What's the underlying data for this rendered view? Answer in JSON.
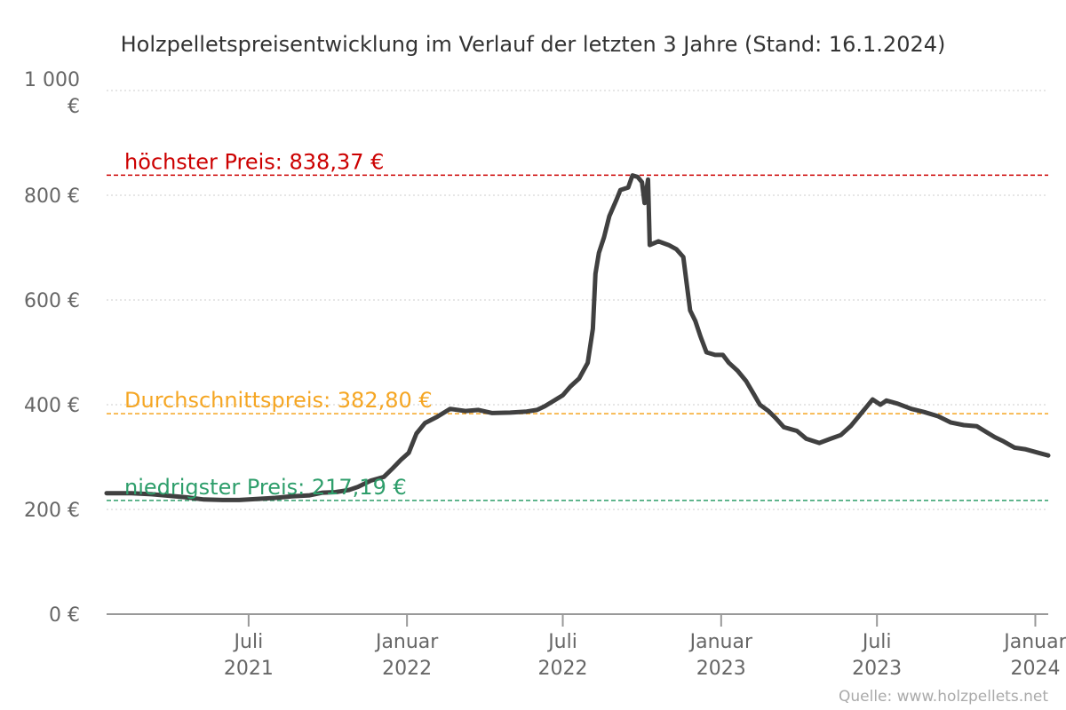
{
  "chart_data": {
    "type": "line",
    "title": "Holzpelletspreisentwicklung im Verlauf der letzten 3 Jahre (Stand: 16.1.2024)",
    "source": "Quelle: www.holzpellets.net",
    "ylim": [
      0,
      1000
    ],
    "xlim": [
      "2021-01-17",
      "2024-01-16"
    ],
    "grid": true,
    "y_ticks": [
      {
        "value": 0,
        "label": "0 €"
      },
      {
        "value": 200,
        "label": "200 €"
      },
      {
        "value": 400,
        "label": "400 €"
      },
      {
        "value": 600,
        "label": "600 €"
      },
      {
        "value": 800,
        "label": "800 €"
      },
      {
        "value": 1000,
        "label": "1 000",
        "label2": "€"
      }
    ],
    "x_ticks": [
      {
        "date": "2021-07-01",
        "line1": "Juli",
        "line2": "2021"
      },
      {
        "date": "2022-01-01",
        "line1": "Januar",
        "line2": "2022"
      },
      {
        "date": "2022-07-01",
        "line1": "Juli",
        "line2": "2022"
      },
      {
        "date": "2023-01-01",
        "line1": "Januar",
        "line2": "2023"
      },
      {
        "date": "2023-07-01",
        "line1": "Juli",
        "line2": "2023"
      },
      {
        "date": "2024-01-01",
        "line1": "Januar",
        "line2": "2024"
      }
    ],
    "reference_lines": [
      {
        "value": 838.37,
        "label": "höchster Preis: 838,37 €",
        "color": "#cc0000"
      },
      {
        "value": 382.8,
        "label": "Durchschnittspreis: 382,80 €",
        "color": "#f5a623"
      },
      {
        "value": 217.19,
        "label": "niedrigster Preis: 217,19 €",
        "color": "#2e9e6b"
      }
    ],
    "series": [
      {
        "color": "#404040",
        "points": [
          [
            "2021-01-17",
            231
          ],
          [
            "2021-02-15",
            231
          ],
          [
            "2021-03-10",
            229
          ],
          [
            "2021-04-01",
            226
          ],
          [
            "2021-04-20",
            223
          ],
          [
            "2021-05-10",
            219
          ],
          [
            "2021-06-01",
            218
          ],
          [
            "2021-06-20",
            218
          ],
          [
            "2021-07-10",
            220
          ],
          [
            "2021-08-01",
            222
          ],
          [
            "2021-08-20",
            225
          ],
          [
            "2021-09-10",
            227
          ],
          [
            "2021-09-25",
            232
          ],
          [
            "2021-10-10",
            233
          ],
          [
            "2021-10-25",
            237
          ],
          [
            "2021-11-05",
            243
          ],
          [
            "2021-11-20",
            255
          ],
          [
            "2021-12-05",
            262
          ],
          [
            "2021-12-15",
            278
          ],
          [
            "2021-12-25",
            295
          ],
          [
            "2022-01-03",
            308
          ],
          [
            "2022-01-12",
            345
          ],
          [
            "2022-01-22",
            365
          ],
          [
            "2022-02-05",
            377
          ],
          [
            "2022-02-20",
            392
          ],
          [
            "2022-03-10",
            388
          ],
          [
            "2022-03-25",
            390
          ],
          [
            "2022-04-10",
            384
          ],
          [
            "2022-05-01",
            385
          ],
          [
            "2022-05-20",
            387
          ],
          [
            "2022-06-01",
            390
          ],
          [
            "2022-06-10",
            397
          ],
          [
            "2022-06-20",
            407
          ],
          [
            "2022-07-01",
            418
          ],
          [
            "2022-07-10",
            435
          ],
          [
            "2022-07-20",
            450
          ],
          [
            "2022-07-30",
            480
          ],
          [
            "2022-08-05",
            545
          ],
          [
            "2022-08-08",
            650
          ],
          [
            "2022-08-12",
            690
          ],
          [
            "2022-08-18",
            720
          ],
          [
            "2022-08-24",
            760
          ],
          [
            "2022-09-01",
            790
          ],
          [
            "2022-09-06",
            810
          ],
          [
            "2022-09-15",
            815
          ],
          [
            "2022-09-20",
            838
          ],
          [
            "2022-09-26",
            835
          ],
          [
            "2022-10-01",
            825
          ],
          [
            "2022-10-04",
            785
          ],
          [
            "2022-10-08",
            830
          ],
          [
            "2022-10-10",
            705
          ],
          [
            "2022-10-20",
            712
          ],
          [
            "2022-11-01",
            705
          ],
          [
            "2022-11-10",
            697
          ],
          [
            "2022-11-18",
            682
          ],
          [
            "2022-11-22",
            630
          ],
          [
            "2022-11-26",
            580
          ],
          [
            "2022-12-02",
            560
          ],
          [
            "2022-12-08",
            530
          ],
          [
            "2022-12-15",
            500
          ],
          [
            "2022-12-25",
            495
          ],
          [
            "2023-01-03",
            495
          ],
          [
            "2023-01-10",
            480
          ],
          [
            "2023-01-20",
            465
          ],
          [
            "2023-01-30",
            445
          ],
          [
            "2023-02-08",
            420
          ],
          [
            "2023-02-15",
            400
          ],
          [
            "2023-02-25",
            388
          ],
          [
            "2023-03-05",
            375
          ],
          [
            "2023-03-15",
            357
          ],
          [
            "2023-03-30",
            350
          ],
          [
            "2023-04-10",
            335
          ],
          [
            "2023-04-25",
            327
          ],
          [
            "2023-05-08",
            335
          ],
          [
            "2023-05-20",
            342
          ],
          [
            "2023-06-01",
            360
          ],
          [
            "2023-06-10",
            378
          ],
          [
            "2023-06-20",
            398
          ],
          [
            "2023-06-26",
            410
          ],
          [
            "2023-07-05",
            400
          ],
          [
            "2023-07-12",
            408
          ],
          [
            "2023-07-25",
            402
          ],
          [
            "2023-08-10",
            392
          ],
          [
            "2023-08-25",
            386
          ],
          [
            "2023-09-10",
            378
          ],
          [
            "2023-09-25",
            366
          ],
          [
            "2023-10-10",
            361
          ],
          [
            "2023-10-25",
            359
          ],
          [
            "2023-11-05",
            348
          ],
          [
            "2023-11-15",
            338
          ],
          [
            "2023-11-25",
            330
          ],
          [
            "2023-12-08",
            318
          ],
          [
            "2023-12-20",
            315
          ],
          [
            "2024-01-05",
            308
          ],
          [
            "2024-01-16",
            303
          ]
        ]
      }
    ]
  }
}
